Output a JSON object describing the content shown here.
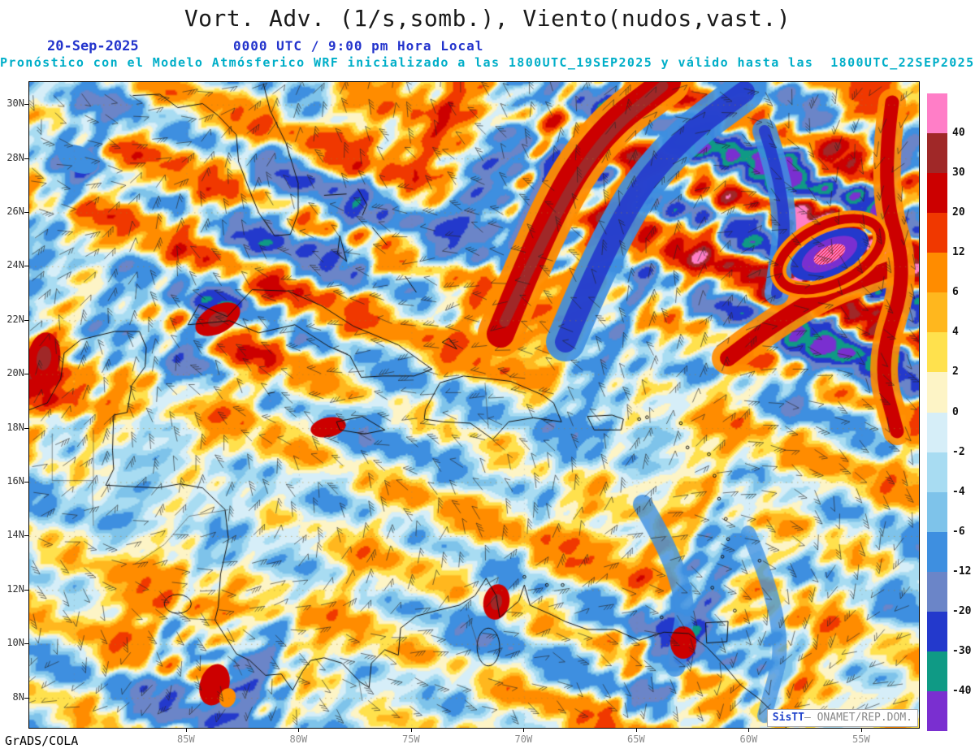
{
  "header": {
    "title": "Vort. Adv. (1/s,somb.), Viento(nudos,vast.)",
    "date": "20-Sep-2025",
    "time": "0000 UTC / 9:00 pm Hora Local",
    "forecast_line": "Pronóstico con el Modelo Atmósferico WRF inicializado a las 1800UTC_19SEP2025 y válido hasta las  1800UTC_22SEP2025"
  },
  "map": {
    "lat_labels": [
      "30N",
      "28N",
      "26N",
      "24N",
      "22N",
      "20N",
      "18N",
      "16N",
      "14N",
      "12N",
      "10N",
      "8N"
    ],
    "lon_labels": [
      "85W",
      "80W",
      "75W",
      "70W",
      "65W",
      "60W",
      "55W"
    ]
  },
  "colorbar": {
    "tick_labels": [
      "40",
      "30",
      "20",
      "12",
      "6",
      "4",
      "2",
      "0",
      "-2",
      "-4",
      "-6",
      "-12",
      "-20",
      "-30",
      "-40"
    ],
    "colors_top_to_bottom": [
      "#ff7ec7",
      "#a02828",
      "#cc0000",
      "#f03800",
      "#ff8c00",
      "#ffb71e",
      "#ffe14d",
      "#fdf4c6",
      "#d6eef8",
      "#a8dcf2",
      "#7ec3ea",
      "#3e8fe0",
      "#6b85c8",
      "#2339cc",
      "#0f9a85",
      "#7a2fd0"
    ]
  },
  "footer": {
    "credit": "GrADS/COLA",
    "brand_sis": "Sis",
    "brand_tt": "TT",
    "brand_rest": "– ONAMET/REP.DOM."
  },
  "colors": {
    "heading_blue": "#2233cc",
    "subtitle_cyan": "#00aec8",
    "brand_blue": "#2244cc"
  }
}
